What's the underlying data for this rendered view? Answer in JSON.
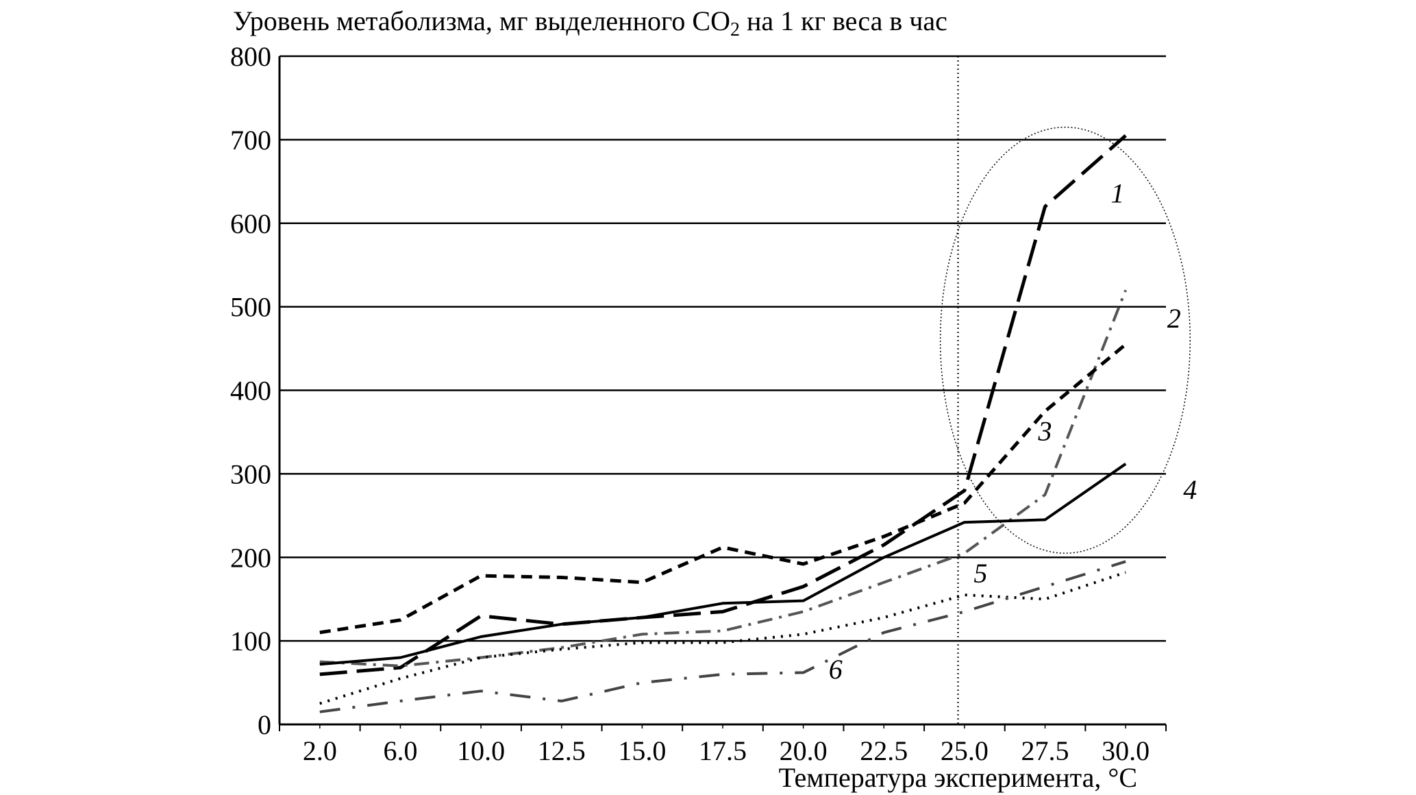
{
  "chart_data": {
    "type": "line",
    "ylabel": "Уровень метаболизма, мг выделенного СО",
    "ylabel_subscript": "2",
    "ylabel_suffix": " на 1 кг веса в час",
    "xlabel": "Температура эксперимента, °С",
    "categories": [
      "2.0",
      "6.0",
      "10.0",
      "12.5",
      "15.0",
      "17.5",
      "20.0",
      "22.5",
      "25.0",
      "27.5",
      "30.0"
    ],
    "ylim": [
      0,
      800
    ],
    "yticks": [
      0,
      100,
      200,
      300,
      400,
      500,
      600,
      700,
      800
    ],
    "ytick_labels": [
      "0",
      "100",
      "200",
      "300",
      "400",
      "500",
      "600",
      "700",
      "800"
    ],
    "grid": "horizontal",
    "reference_line_at": "25.0",
    "highlight_ellipse": "around series 1-4 at 25.0–30.0",
    "series": [
      {
        "name": "1",
        "style": "long-dash",
        "x_index": [
          0,
          1,
          2,
          3,
          4,
          5,
          6,
          7,
          8,
          9,
          10
        ],
        "values": [
          60,
          68,
          130,
          120,
          128,
          135,
          165,
          215,
          280,
          620,
          705
        ]
      },
      {
        "name": "2",
        "style": "dash-dot-gray",
        "x_index": [
          0,
          1,
          2,
          3,
          4,
          5,
          6,
          7,
          8,
          9,
          10
        ],
        "values": [
          75,
          70,
          80,
          92,
          108,
          112,
          135,
          170,
          205,
          275,
          520
        ]
      },
      {
        "name": "3",
        "style": "short-dash",
        "x_index": [
          0,
          1,
          2,
          3,
          4,
          5,
          6,
          7,
          8,
          9,
          10
        ],
        "values": [
          110,
          125,
          178,
          176,
          170,
          212,
          192,
          225,
          265,
          375,
          455
        ]
      },
      {
        "name": "4",
        "style": "solid",
        "x_index": [
          0,
          1,
          2,
          3,
          4,
          5,
          6,
          7,
          8,
          9,
          10
        ],
        "values": [
          72,
          80,
          105,
          120,
          128,
          145,
          148,
          200,
          242,
          245,
          312
        ]
      },
      {
        "name": "5",
        "style": "dotted",
        "x_index": [
          0,
          1,
          2,
          3,
          4,
          5,
          6,
          7,
          8,
          9,
          10
        ],
        "values": [
          25,
          55,
          80,
          90,
          98,
          98,
          108,
          128,
          155,
          150,
          182
        ]
      },
      {
        "name": "6",
        "style": "dash-dot-gray-long",
        "x_index": [
          0,
          1,
          2,
          3,
          4,
          5,
          6,
          7,
          8,
          9,
          10
        ],
        "values": [
          15,
          28,
          40,
          28,
          50,
          60,
          62,
          110,
          135,
          165,
          195
        ]
      }
    ]
  }
}
